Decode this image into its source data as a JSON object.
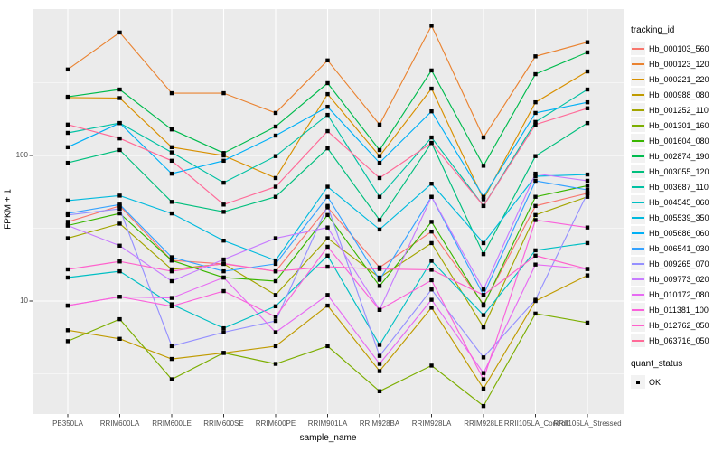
{
  "colors": {
    "page_bg": "#FFFFFF",
    "panel_bg": "#EBEBEB",
    "gridline": "#FFFFFF",
    "marker": "#000000",
    "tick_text": "#4D4D4D",
    "axis_text": "#000000"
  },
  "chart_data": {
    "type": "line",
    "title": "",
    "xlabel": "sample_name",
    "ylabel": "FPKM + 1",
    "y_scale": "log10",
    "ylim": [
      1.7,
      1000
    ],
    "y_ticks": [
      100,
      10
    ],
    "y_tick_labels": [
      "100",
      "10"
    ],
    "y_minor_gridlines": [
      316.2,
      31.62,
      3.162
    ],
    "grid": "white major+minor on gray panel",
    "legend_position": "right",
    "marker_shape": "filled-black-square",
    "x_categories": [
      "PB350LA",
      "RRIM600LA",
      "RRIM600LE",
      "RRIM600SE",
      "RRIM600PE",
      "RRIM901LA",
      "RRIM928BA",
      "RRIM928LA",
      "RRIM928LE",
      "RRII105LA_Control",
      "RRII105LA_Stressed"
    ],
    "legend": {
      "title": "tracking_id"
    },
    "quant_status": {
      "title": "quant_status",
      "entries": [
        "OK"
      ]
    },
    "series": [
      {
        "name": "Hb_000103_560",
        "color": "#F8766D",
        "values": [
          35,
          45,
          19,
          18,
          16,
          44,
          17,
          30,
          9.5,
          45,
          55
        ]
      },
      {
        "name": "Hb_000123_120",
        "color": "#EA8331",
        "values": [
          390,
          700,
          268,
          268,
          196,
          450,
          163,
          780,
          133,
          480,
          600
        ]
      },
      {
        "name": "Hb_000221_220",
        "color": "#D89000",
        "values": [
          250,
          248,
          114,
          100,
          70,
          264,
          99,
          288,
          50,
          232,
          378
        ]
      },
      {
        "name": "Hb_000988_080",
        "color": "#C09B00",
        "values": [
          6.3,
          5.5,
          4.0,
          4.4,
          4.9,
          9.3,
          3.3,
          9.0,
          2.5,
          10,
          15
        ]
      },
      {
        "name": "Hb_001252_110",
        "color": "#A3A500",
        "values": [
          27,
          34,
          16.5,
          18,
          11,
          27,
          14.5,
          25,
          6.6,
          39,
          52
        ]
      },
      {
        "name": "Hb_001301_160",
        "color": "#7CAE00",
        "values": [
          5.3,
          7.5,
          2.9,
          4.4,
          3.7,
          4.9,
          2.4,
          3.6,
          1.9,
          8.2,
          7.1
        ]
      },
      {
        "name": "Hb_001604_080",
        "color": "#39B600",
        "values": [
          33,
          40,
          19,
          14.5,
          13.7,
          39,
          12.7,
          35,
          9.3,
          52,
          62
        ]
      },
      {
        "name": "Hb_002874_190",
        "color": "#00BB4E",
        "values": [
          253,
          284,
          151,
          104,
          158,
          314,
          109,
          384,
          85,
          362,
          511
        ]
      },
      {
        "name": "Hb_003055_120",
        "color": "#00BF7D",
        "values": [
          89,
          109,
          48,
          41,
          52,
          112,
          36,
          122,
          21,
          99,
          167
        ]
      },
      {
        "name": "Hb_003687_110",
        "color": "#00C1A3",
        "values": [
          143,
          167,
          105,
          65,
          99,
          190,
          52,
          133,
          45,
          170,
          284
        ]
      },
      {
        "name": "Hb_004545_060",
        "color": "#00BFC4",
        "values": [
          14.5,
          16,
          9.5,
          6.5,
          9.2,
          20.5,
          5.0,
          18.9,
          8.0,
          22.3,
          25
        ]
      },
      {
        "name": "Hb_005539_350",
        "color": "#00BADE",
        "values": [
          49,
          53,
          40,
          26,
          19,
          61,
          31,
          64,
          25,
          72,
          74
        ]
      },
      {
        "name": "Hb_005686_060",
        "color": "#00B0F6",
        "values": [
          114,
          167,
          75,
          92,
          137,
          216,
          89,
          201,
          52,
          196,
          232
        ]
      },
      {
        "name": "Hb_006541_030",
        "color": "#35A2FF",
        "values": [
          40,
          46,
          20,
          16,
          18,
          52,
          14,
          52,
          11,
          67,
          58
        ]
      },
      {
        "name": "Hb_009265_070",
        "color": "#9590FF",
        "values": [
          39,
          43,
          4.9,
          6.1,
          7.3,
          45,
          4.2,
          12,
          4.1,
          10.2,
          55
        ]
      },
      {
        "name": "Hb_009773_020",
        "color": "#C77CFF",
        "values": [
          33,
          24,
          13.7,
          19.3,
          27,
          32,
          8.7,
          52,
          12,
          75,
          67
        ]
      },
      {
        "name": "Hb_010172_080",
        "color": "#E76BF3",
        "values": [
          9.3,
          10.7,
          10.5,
          14.5,
          6.1,
          11,
          3.7,
          10.2,
          3.2,
          17.8,
          16.6
        ]
      },
      {
        "name": "Hb_011381_100",
        "color": "#FA62DB",
        "values": [
          9.3,
          10.7,
          9.2,
          11.7,
          7.8,
          23.6,
          8.7,
          13.9,
          2.9,
          36,
          32
        ]
      },
      {
        "name": "Hb_012762_050",
        "color": "#FF61CC",
        "values": [
          16.5,
          18.7,
          16,
          18.1,
          16,
          17.2,
          16.6,
          16.4,
          11,
          20.5,
          16.6
        ]
      },
      {
        "name": "Hb_063716_050",
        "color": "#FF6A98",
        "values": [
          163,
          131,
          92,
          46,
          61,
          147,
          70,
          122,
          45,
          163,
          211
        ]
      }
    ]
  }
}
